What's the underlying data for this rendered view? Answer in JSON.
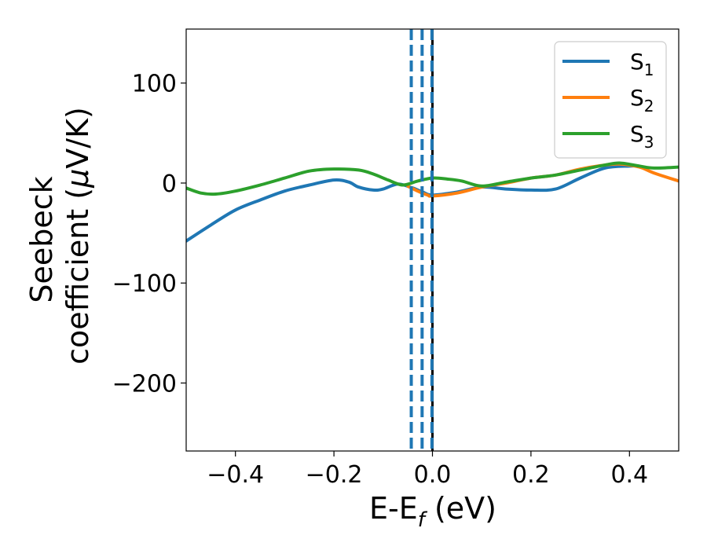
{
  "chart_data": {
    "type": "line",
    "xlabel": "E-E_f (eV)",
    "xlabel_parts": {
      "main": "E-E",
      "sub": "f",
      "rest": " (eV)"
    },
    "ylabel_line1": "Seebeck",
    "ylabel_line2_prefix": "coefficient  (",
    "ylabel_mu": "μ",
    "ylabel_line2_suffix": "V/K)",
    "xlim": [
      -0.5,
      0.5
    ],
    "ylim": [
      -268,
      154
    ],
    "xticks": [
      -0.4,
      -0.2,
      0.0,
      0.2,
      0.4
    ],
    "xtick_labels": [
      "−0.4",
      "−0.2",
      "0.0",
      "0.2",
      "0.4"
    ],
    "yticks": [
      100,
      0,
      -100,
      -200
    ],
    "ytick_labels": [
      "100",
      "0",
      "−100",
      "−200"
    ],
    "grid": false,
    "legend_position": "top-right",
    "vertical_lines": [
      {
        "x": -0.043,
        "style": "dashed",
        "color": "#1f77b4"
      },
      {
        "x": -0.021,
        "style": "dashed",
        "color": "#1f77b4"
      },
      {
        "x": 0.0,
        "style": "solid",
        "color": "#000000"
      },
      {
        "x": -0.001,
        "style": "dashed",
        "color": "#1f77b4"
      }
    ],
    "series": [
      {
        "name": "S_1",
        "label_main": "S",
        "label_sub": "1",
        "color": "#1f77b4",
        "x": [
          -0.5,
          -0.45,
          -0.4,
          -0.35,
          -0.3,
          -0.25,
          -0.2,
          -0.17,
          -0.15,
          -0.12,
          -0.1,
          -0.07,
          -0.04,
          -0.02,
          0.0,
          0.05,
          0.1,
          0.15,
          0.2,
          0.25,
          0.3,
          0.35,
          0.4,
          0.42
        ],
        "y": [
          -58,
          -42,
          -27,
          -17,
          -8,
          -2,
          3,
          1,
          -4,
          -7,
          -6,
          -1,
          -5,
          -9,
          -12,
          -9,
          -4,
          -6,
          -7,
          -6,
          5,
          15,
          17,
          17
        ]
      },
      {
        "name": "S_2",
        "label_main": "S",
        "label_sub": "2",
        "color": "#ff7f0e",
        "x": [
          -0.05,
          -0.03,
          -0.01,
          0.0,
          0.05,
          0.1,
          0.15,
          0.2,
          0.25,
          0.3,
          0.35,
          0.38,
          0.42,
          0.45,
          0.5
        ],
        "y": [
          -3,
          -8,
          -12,
          -13,
          -10,
          -4,
          0,
          5,
          8,
          14,
          18,
          19,
          16,
          10,
          2
        ]
      },
      {
        "name": "S_3",
        "label_main": "S",
        "label_sub": "3",
        "color": "#2ca02c",
        "x": [
          -0.5,
          -0.47,
          -0.44,
          -0.4,
          -0.35,
          -0.3,
          -0.25,
          -0.2,
          -0.15,
          -0.12,
          -0.09,
          -0.06,
          -0.03,
          0.0,
          0.03,
          0.06,
          0.1,
          0.15,
          0.2,
          0.25,
          0.3,
          0.35,
          0.38,
          0.42,
          0.45,
          0.5
        ],
        "y": [
          -5,
          -10,
          -11,
          -8,
          -2,
          5,
          12,
          14,
          13,
          9,
          3,
          -2,
          2,
          5,
          4,
          2,
          -3,
          1,
          5,
          8,
          13,
          18,
          20,
          17,
          15,
          16
        ]
      }
    ]
  }
}
